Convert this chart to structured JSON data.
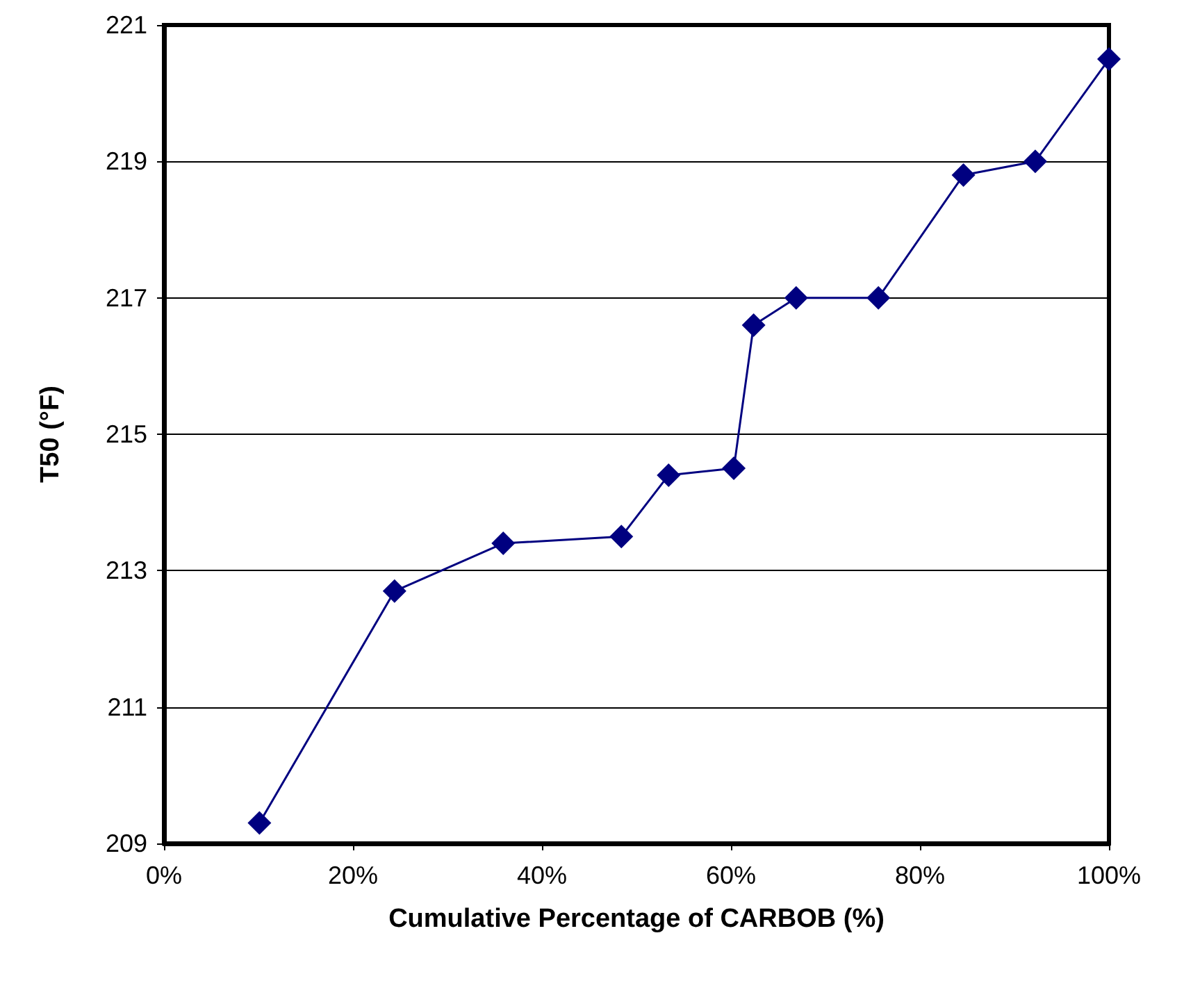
{
  "chart_data": {
    "type": "line",
    "xlabel": "Cumulative Percentage of CARBOB (%)",
    "ylabel": "T50 (°F)",
    "series": [
      {
        "color": "#000080",
        "x": [
          10.1,
          24.4,
          35.9,
          48.4,
          53.4,
          60.3,
          62.4,
          66.9,
          75.6,
          84.6,
          92.2,
          100
        ],
        "values": [
          209.3,
          212.7,
          213.4,
          213.5,
          214.4,
          214.5,
          216.6,
          217.0,
          217.0,
          218.8,
          219.0,
          220.5
        ]
      }
    ],
    "xlim": [
      0,
      100
    ],
    "xticks": [
      {
        "value": 0,
        "label": "0%"
      },
      {
        "value": 20,
        "label": "20%"
      },
      {
        "value": 40,
        "label": "40%"
      },
      {
        "value": 60,
        "label": "60%"
      },
      {
        "value": 80,
        "label": "80%"
      },
      {
        "value": 100,
        "label": "100%"
      }
    ],
    "ylim": [
      209,
      221
    ],
    "yticks": [
      209,
      211,
      213,
      215,
      217,
      219,
      221
    ],
    "grid": "y",
    "marker": "diamond",
    "line_style": "solid"
  }
}
